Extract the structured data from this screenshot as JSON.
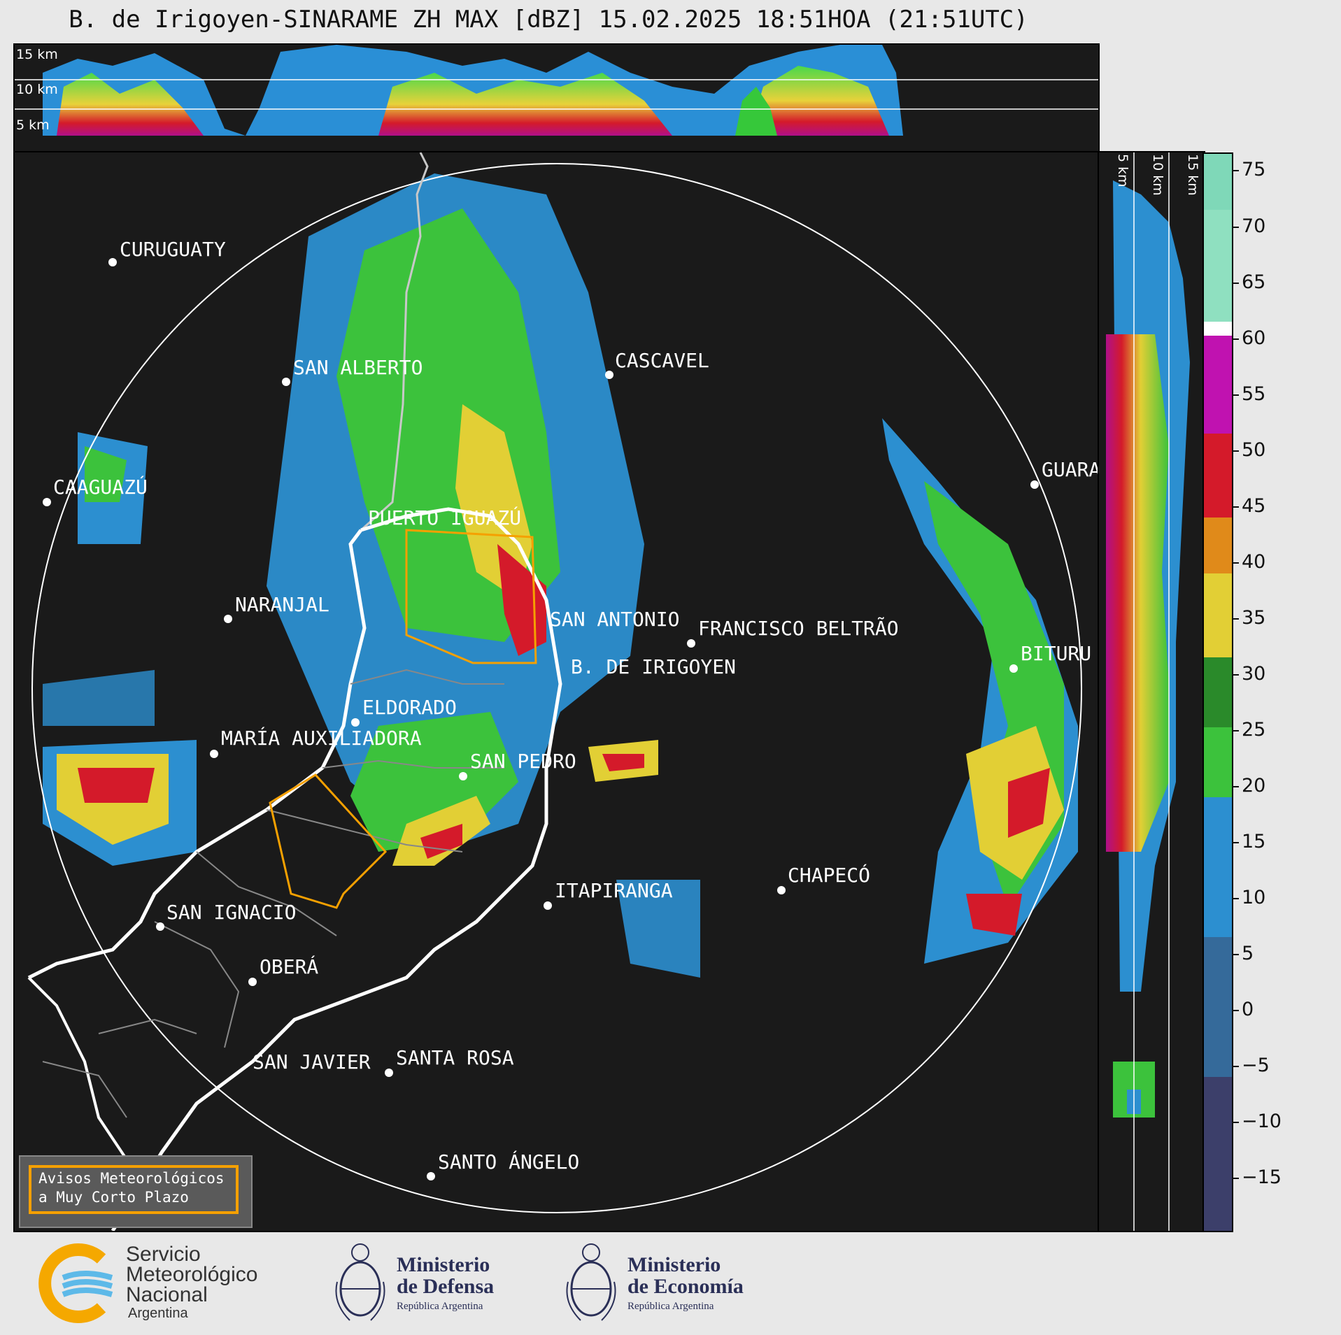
{
  "title": "B. de Irigoyen-SINARAME ZH MAX [dBZ] 15.02.2025 18:51HOA (21:51UTC)",
  "top_panel": {
    "height_labels": [
      "15 km",
      "10 km",
      "5 km"
    ]
  },
  "side_panel": {
    "height_labels": [
      "5 km",
      "10 km",
      "15 km"
    ]
  },
  "cities": [
    {
      "id": "curuguaty",
      "name": "CURUGUATY"
    },
    {
      "id": "san-alberto",
      "name": "SAN ALBERTO"
    },
    {
      "id": "cascavel",
      "name": "CASCAVEL"
    },
    {
      "id": "caaguazu",
      "name": "CAAGUAZÚ"
    },
    {
      "id": "puerto-iguazu",
      "name": "PUERTO IGUAZÚ"
    },
    {
      "id": "guarapuava",
      "name": "GUARA"
    },
    {
      "id": "naranjal",
      "name": "NARANJAL"
    },
    {
      "id": "san-antonio",
      "name": "SAN ANTONIO"
    },
    {
      "id": "francisco-beltrao",
      "name": "FRANCISCO BELTRÃO"
    },
    {
      "id": "bituruna",
      "name": "BITURU"
    },
    {
      "id": "b-de-irigoyen",
      "name": "B. DE IRIGOYEN"
    },
    {
      "id": "eldorado",
      "name": "ELDORADO"
    },
    {
      "id": "maria-auxiliadora",
      "name": "MARÍA AUXILIADORA"
    },
    {
      "id": "san-pedro",
      "name": "SAN PEDRO"
    },
    {
      "id": "chapeco",
      "name": "CHAPECÓ"
    },
    {
      "id": "itapiranga",
      "name": "ITAPIRANGA"
    },
    {
      "id": "san-ignacio",
      "name": "SAN IGNACIO"
    },
    {
      "id": "obera",
      "name": "OBERÁ"
    },
    {
      "id": "san-javier",
      "name": "SAN JAVIER"
    },
    {
      "id": "santa-rosa",
      "name": "SANTA ROSA"
    },
    {
      "id": "santo-angelo",
      "name": "SANTO ÁNGELO"
    }
  ],
  "colorbar": {
    "unit": "dBZ",
    "ticks": [
      "75",
      "70",
      "65",
      "60",
      "55",
      "50",
      "45",
      "40",
      "35",
      "30",
      "25",
      "20",
      "15",
      "10",
      "5",
      "0",
      "−5",
      "−10",
      "−15"
    ]
  },
  "legend": {
    "line1": "Avisos Meteorológicos",
    "line2": "a Muy Corto Plazo",
    "border_color": "#f5a000"
  },
  "logos": {
    "smn_line1": "Servicio",
    "smn_line2": "Meteorológico",
    "smn_line3": "Nacional",
    "smn_sub": "Argentina",
    "defensa_line1": "Ministerio",
    "defensa_line2": "de Defensa",
    "defensa_sub": "República Argentina",
    "economia_line1": "Ministerio",
    "economia_line2": "de Economía",
    "economia_sub": "República Argentina"
  }
}
